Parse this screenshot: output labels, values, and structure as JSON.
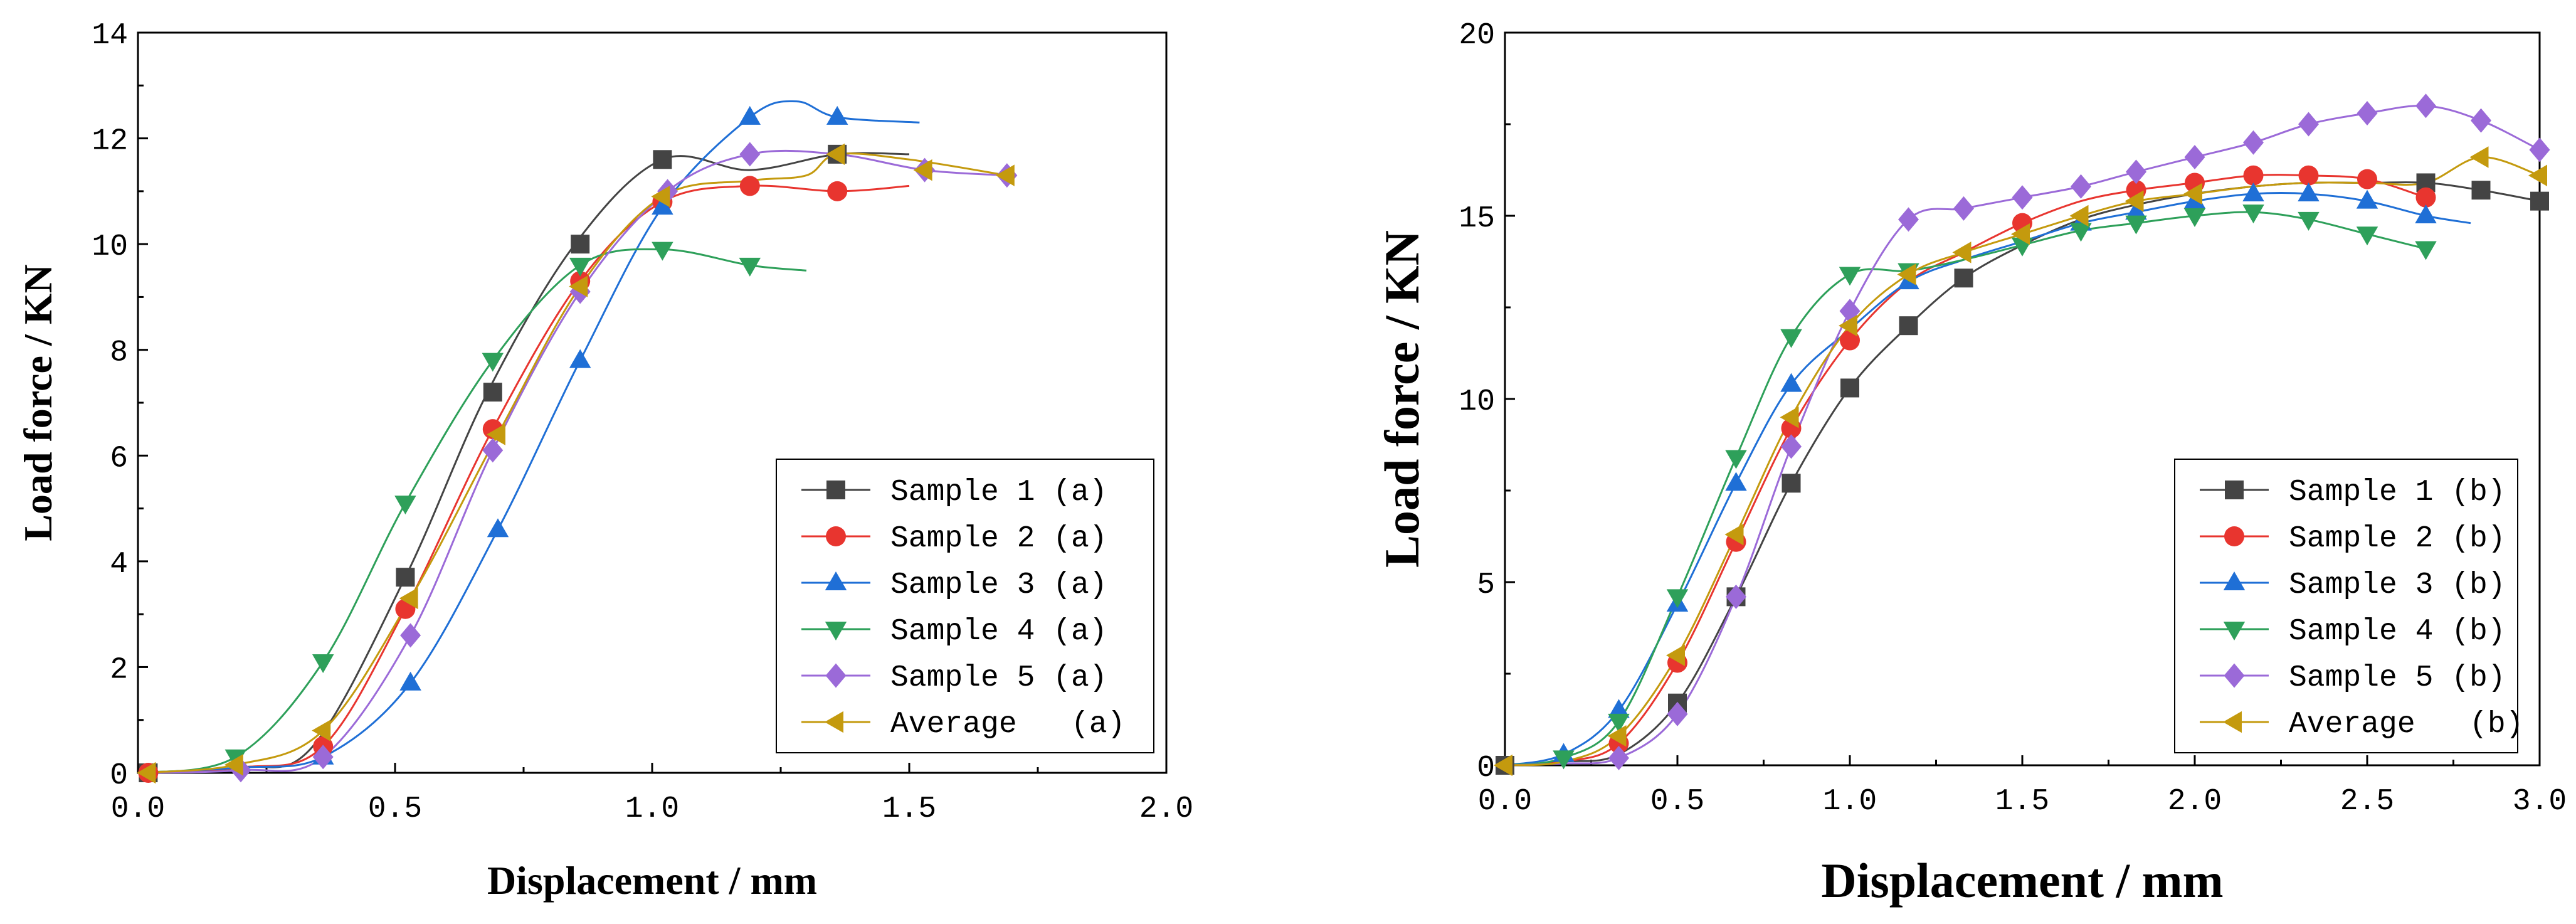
{
  "chart_data": [
    {
      "id": "a",
      "type": "line",
      "xlabel": "Displacement / mm",
      "ylabel": "Load force / KN",
      "xlim": [
        0,
        2
      ],
      "ylim": [
        0,
        14
      ],
      "xticks": [
        0,
        0.5,
        1,
        1.5,
        2
      ],
      "yticks": [
        0,
        2,
        4,
        6,
        8,
        10,
        12,
        14
      ],
      "xtick_labels": [
        "0.0",
        "0.5",
        "1.0",
        "1.5",
        "2.0"
      ],
      "ytick_labels": [
        "0",
        "2",
        "4",
        "6",
        "8",
        "10",
        "12",
        "14"
      ],
      "legend_position": "lower-right",
      "series": [
        {
          "name": "Sample 1 (a)",
          "marker": "square",
          "color": "#444444",
          "x": [
            0,
            0.2,
            0.34,
            0.52,
            0.68,
            0.85,
            1.02,
            1.19,
            1.36,
            1.5
          ],
          "y": [
            0,
            0.1,
            0.5,
            3.7,
            7.2,
            10.0,
            11.6,
            11.4,
            11.7,
            11.7
          ],
          "marker_x": [
            0.02,
            0.52,
            0.69,
            0.86,
            1.02,
            1.36
          ],
          "marker_y": [
            0,
            3.7,
            7.2,
            10.0,
            11.6,
            11.7
          ]
        },
        {
          "name": "Sample 2 (a)",
          "marker": "circle",
          "color": "#e8352f",
          "x": [
            0,
            0.2,
            0.36,
            0.52,
            0.69,
            0.86,
            1.02,
            1.19,
            1.36,
            1.5
          ],
          "y": [
            0,
            0.1,
            0.5,
            3.1,
            6.5,
            9.3,
            10.8,
            11.1,
            11.0,
            11.1
          ],
          "marker_x": [
            0.02,
            0.36,
            0.52,
            0.69,
            0.86,
            1.02,
            1.19,
            1.36
          ],
          "marker_y": [
            0,
            0.5,
            3.1,
            6.5,
            9.3,
            10.8,
            11.1,
            11.0
          ]
        },
        {
          "name": "Sample 3 (a)",
          "marker": "triangle-up",
          "color": "#1f6fd6",
          "x": [
            0,
            0.2,
            0.36,
            0.53,
            0.7,
            0.86,
            1.02,
            1.19,
            1.28,
            1.36,
            1.52
          ],
          "y": [
            0,
            0.1,
            0.3,
            1.7,
            4.6,
            7.8,
            10.7,
            12.4,
            12.7,
            12.4,
            12.3
          ],
          "marker_x": [
            0.36,
            0.53,
            0.7,
            0.86,
            1.02,
            1.19,
            1.36
          ],
          "marker_y": [
            0.3,
            1.7,
            4.6,
            7.8,
            10.7,
            12.4,
            12.4
          ]
        },
        {
          "name": "Sample 4 (a)",
          "marker": "triangle-down",
          "color": "#2ea05a",
          "x": [
            0,
            0.19,
            0.36,
            0.52,
            0.69,
            0.86,
            1.02,
            1.19,
            1.3
          ],
          "y": [
            0,
            0.3,
            2.1,
            5.1,
            7.8,
            9.6,
            9.9,
            9.6,
            9.5
          ],
          "marker_x": [
            0.19,
            0.36,
            0.52,
            0.69,
            0.86,
            1.02,
            1.19
          ],
          "marker_y": [
            0.3,
            2.1,
            5.1,
            7.8,
            9.6,
            9.9,
            9.6
          ]
        },
        {
          "name": "Sample 5 (a)",
          "marker": "diamond",
          "color": "#9b6ad8",
          "x": [
            0,
            0.2,
            0.36,
            0.53,
            0.69,
            0.86,
            1.03,
            1.19,
            1.36,
            1.53,
            1.69
          ],
          "y": [
            0,
            0.05,
            0.3,
            2.6,
            6.1,
            9.1,
            11.0,
            11.7,
            11.7,
            11.4,
            11.3
          ],
          "marker_x": [
            0.2,
            0.36,
            0.53,
            0.69,
            0.86,
            1.03,
            1.19,
            1.53,
            1.69
          ],
          "marker_y": [
            0.05,
            0.3,
            2.6,
            6.1,
            9.1,
            11.0,
            11.7,
            11.4,
            11.3
          ]
        },
        {
          "name": "Average   (a)",
          "marker": "triangle-left",
          "color": "#c49a0e",
          "x": [
            0,
            0.19,
            0.36,
            0.53,
            0.7,
            0.86,
            1.02,
            1.19,
            1.3,
            1.36,
            1.5,
            1.69
          ],
          "y": [
            0,
            0.15,
            0.8,
            3.3,
            6.4,
            9.2,
            10.9,
            11.2,
            11.3,
            11.7,
            11.6,
            11.3
          ],
          "marker_x": [
            0.02,
            0.19,
            0.36,
            0.53,
            0.7,
            0.86,
            1.02,
            1.36,
            1.53,
            1.69
          ],
          "marker_y": [
            0,
            0.15,
            0.8,
            3.3,
            6.4,
            9.2,
            10.9,
            11.7,
            11.4,
            11.3
          ]
        }
      ]
    },
    {
      "id": "b",
      "type": "line",
      "xlabel": "Displacement / mm",
      "ylabel": "Load force / KN",
      "xlim": [
        0,
        3
      ],
      "ylim": [
        0,
        20
      ],
      "xticks": [
        0,
        0.5,
        1,
        1.5,
        2,
        2.5,
        3
      ],
      "yticks": [
        0,
        5,
        10,
        15,
        20
      ],
      "xtick_labels": [
        "0.0",
        "0.5",
        "1.0",
        "1.5",
        "2.0",
        "2.5",
        "3.0"
      ],
      "ytick_labels": [
        "0",
        "5",
        "10",
        "15",
        "20"
      ],
      "legend_position": "lower-right",
      "series": [
        {
          "name": "Sample 1 (b)",
          "marker": "square",
          "color": "#444444",
          "x": [
            0,
            0.17,
            0.33,
            0.5,
            0.67,
            0.83,
            1.0,
            1.17,
            1.33,
            1.5,
            1.67,
            1.83,
            2.0,
            2.17,
            2.33,
            2.5,
            2.67,
            2.83,
            3.0
          ],
          "y": [
            0,
            0.1,
            0.3,
            1.7,
            4.6,
            7.7,
            10.3,
            12.0,
            13.3,
            14.2,
            14.9,
            15.3,
            15.6,
            15.8,
            15.9,
            15.9,
            15.9,
            15.7,
            15.4
          ],
          "marker_x": [
            0,
            0.5,
            0.67,
            0.83,
            1.0,
            1.17,
            1.33,
            2.67,
            2.83,
            3.0
          ],
          "marker_y": [
            0,
            1.7,
            4.6,
            7.7,
            10.3,
            12.0,
            13.3,
            15.9,
            15.7,
            15.4
          ]
        },
        {
          "name": "Sample 2 (b)",
          "marker": "circle",
          "color": "#e8352f",
          "x": [
            0,
            0.17,
            0.33,
            0.5,
            0.67,
            0.83,
            1.0,
            1.17,
            1.33,
            1.5,
            1.67,
            1.83,
            2.0,
            2.17,
            2.33,
            2.5,
            2.67
          ],
          "y": [
            0,
            0.1,
            0.6,
            2.8,
            6.1,
            9.2,
            11.6,
            13.2,
            14.0,
            14.8,
            15.4,
            15.7,
            15.9,
            16.1,
            16.1,
            16.0,
            15.5
          ],
          "marker_x": [
            0.33,
            0.5,
            0.67,
            0.83,
            1.0,
            1.5,
            1.83,
            2.0,
            2.17,
            2.33,
            2.5,
            2.67
          ],
          "marker_y": [
            0.6,
            2.8,
            6.1,
            9.2,
            11.6,
            14.8,
            15.7,
            15.9,
            16.1,
            16.1,
            16.0,
            15.5
          ]
        },
        {
          "name": "Sample 3 (b)",
          "marker": "triangle-up",
          "color": "#1f6fd6",
          "x": [
            0,
            0.17,
            0.33,
            0.5,
            0.67,
            0.83,
            1.0,
            1.17,
            1.33,
            1.5,
            1.67,
            1.83,
            2.0,
            2.17,
            2.33,
            2.5,
            2.67,
            2.8
          ],
          "y": [
            0,
            0.3,
            1.5,
            4.4,
            7.7,
            10.4,
            11.9,
            13.2,
            13.8,
            14.3,
            14.8,
            15.1,
            15.4,
            15.6,
            15.6,
            15.4,
            15.0,
            14.8
          ],
          "marker_x": [
            0.17,
            0.33,
            0.5,
            0.67,
            0.83,
            1.17,
            1.67,
            1.83,
            2.0,
            2.17,
            2.33,
            2.5,
            2.67
          ],
          "marker_y": [
            0.3,
            1.5,
            4.4,
            7.7,
            10.4,
            13.2,
            14.8,
            15.1,
            15.4,
            15.6,
            15.6,
            15.4,
            15.0
          ]
        },
        {
          "name": "Sample 4 (b)",
          "marker": "triangle-down",
          "color": "#2ea05a",
          "x": [
            0,
            0.17,
            0.33,
            0.5,
            0.67,
            0.83,
            1.0,
            1.17,
            1.33,
            1.5,
            1.67,
            1.83,
            2.0,
            2.17,
            2.33,
            2.5,
            2.67
          ],
          "y": [
            0,
            0.2,
            1.2,
            4.6,
            8.4,
            11.7,
            13.4,
            13.5,
            13.8,
            14.2,
            14.6,
            14.8,
            15.0,
            15.1,
            14.9,
            14.5,
            14.1
          ],
          "marker_x": [
            0.17,
            0.33,
            0.5,
            0.67,
            0.83,
            1.0,
            1.17,
            1.5,
            1.67,
            1.83,
            2.0,
            2.17,
            2.33,
            2.5,
            2.67
          ],
          "marker_y": [
            0.2,
            1.2,
            4.6,
            8.4,
            11.7,
            13.4,
            13.5,
            14.2,
            14.6,
            14.8,
            15.0,
            15.1,
            14.9,
            14.5,
            14.1
          ]
        },
        {
          "name": "Sample 5 (b)",
          "marker": "diamond",
          "color": "#9b6ad8",
          "x": [
            0,
            0.17,
            0.33,
            0.5,
            0.67,
            0.83,
            1.0,
            1.17,
            1.33,
            1.5,
            1.67,
            1.83,
            2.0,
            2.17,
            2.33,
            2.5,
            2.67,
            2.83,
            3.0
          ],
          "y": [
            0,
            0.05,
            0.2,
            1.4,
            4.6,
            8.7,
            12.4,
            14.9,
            15.2,
            15.5,
            15.8,
            16.2,
            16.6,
            17.0,
            17.5,
            17.8,
            18.0,
            17.6,
            16.8
          ],
          "marker_x": [
            0.33,
            0.5,
            0.67,
            0.83,
            1.0,
            1.17,
            1.33,
            1.5,
            1.67,
            1.83,
            2.0,
            2.17,
            2.33,
            2.5,
            2.67,
            2.83,
            3.0
          ],
          "marker_y": [
            0.2,
            1.4,
            4.6,
            8.7,
            12.4,
            14.9,
            15.2,
            15.5,
            15.8,
            16.2,
            16.6,
            17.0,
            17.5,
            17.8,
            18.0,
            17.6,
            16.8
          ]
        },
        {
          "name": "Average   (b)",
          "marker": "triangle-left",
          "color": "#c49a0e",
          "x": [
            0,
            0.17,
            0.33,
            0.5,
            0.67,
            0.83,
            1.0,
            1.17,
            1.33,
            1.5,
            1.67,
            1.83,
            2.0,
            2.17,
            2.33,
            2.5,
            2.67,
            2.83,
            3.0
          ],
          "y": [
            0,
            0.1,
            0.8,
            3.0,
            6.3,
            9.5,
            12.0,
            13.4,
            14.0,
            14.5,
            15.0,
            15.4,
            15.6,
            15.8,
            15.9,
            15.9,
            15.9,
            16.6,
            16.1
          ],
          "marker_x": [
            0,
            0.33,
            0.5,
            0.67,
            0.83,
            1.0,
            1.17,
            1.33,
            1.5,
            1.67,
            1.83,
            2.0,
            2.83,
            3.0
          ],
          "marker_y": [
            0,
            0.8,
            3.0,
            6.3,
            9.5,
            12.0,
            13.4,
            14.0,
            14.5,
            15.0,
            15.4,
            15.6,
            16.6,
            16.1
          ]
        }
      ]
    }
  ]
}
